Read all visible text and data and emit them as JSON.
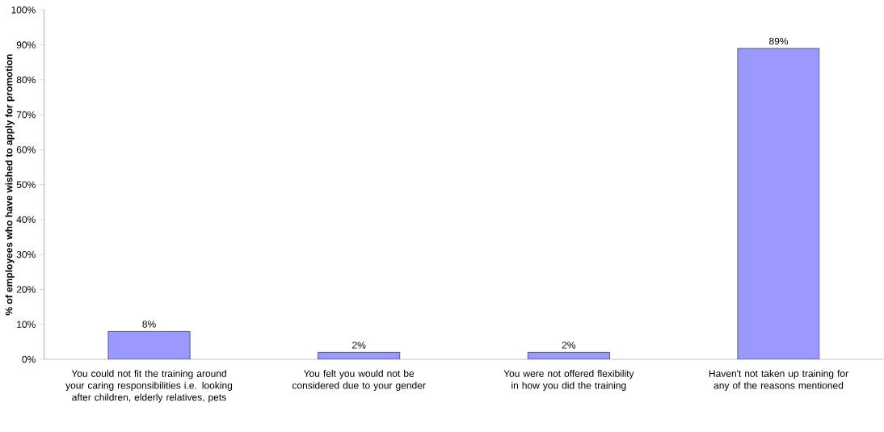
{
  "chart_data": {
    "type": "bar",
    "ylabel": "% of employees who have wished to apply for promotion",
    "categories": [
      "You could not fit the training around your caring responsibilities i.e. looking after children, elderly relatives, pets",
      "You felt you would not be considered due to your gender",
      "You were not offered flexibility in how you did the training",
      "Haven't not taken up training for any of the reasons mentioned"
    ],
    "values": [
      8,
      2,
      2,
      89
    ],
    "value_labels": [
      "8%",
      "2%",
      "2%",
      "89%"
    ],
    "color": "#9999ff",
    "ylim": [
      0,
      100
    ],
    "yticks": [
      {
        "value": 0,
        "label": "0%"
      },
      {
        "value": 10,
        "label": "10%"
      },
      {
        "value": 20,
        "label": "20%"
      },
      {
        "value": 30,
        "label": "30%"
      },
      {
        "value": 40,
        "label": "40%"
      },
      {
        "value": 50,
        "label": "50%"
      },
      {
        "value": 60,
        "label": "60%"
      },
      {
        "value": 70,
        "label": "70%"
      },
      {
        "value": 80,
        "label": "80%"
      },
      {
        "value": 90,
        "label": "90%"
      },
      {
        "value": 100,
        "label": "100%"
      }
    ]
  }
}
